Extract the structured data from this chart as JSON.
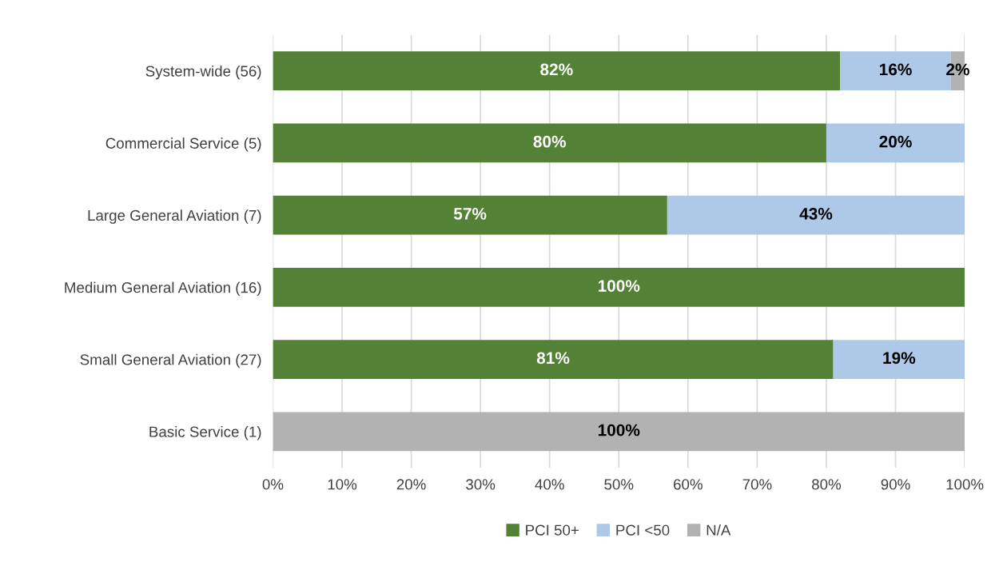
{
  "chart_data": {
    "type": "bar",
    "orientation": "horizontal",
    "stacked": true,
    "categories": [
      "System-wide (56)",
      "Commercial Service (5)",
      "Large General Aviation (7)",
      "Medium General Aviation (16)",
      "Small General Aviation (27)",
      "Basic Service (1)"
    ],
    "series": [
      {
        "name": "PCI 50+",
        "color": "#538135",
        "values": [
          82,
          80,
          57,
          100,
          81,
          0
        ],
        "value_labels": [
          "82%",
          "80%",
          "57%",
          "100%",
          "81%",
          null
        ]
      },
      {
        "name": "PCI <50",
        "color": "#adc9e7",
        "values": [
          16,
          20,
          43,
          0,
          19,
          0
        ],
        "value_labels": [
          "16%",
          "20%",
          "43%",
          null,
          "19%",
          null
        ]
      },
      {
        "name": "N/A",
        "color": "#b2b2b2",
        "values": [
          2,
          0,
          0,
          0,
          0,
          100
        ],
        "value_labels": [
          "2%",
          null,
          null,
          null,
          null,
          "100%"
        ]
      }
    ],
    "xlim": [
      0,
      100
    ],
    "xticks": [
      {
        "value": 0,
        "label": "0%"
      },
      {
        "value": 10,
        "label": "10%"
      },
      {
        "value": 20,
        "label": "20%"
      },
      {
        "value": 30,
        "label": "30%"
      },
      {
        "value": 40,
        "label": "40%"
      },
      {
        "value": 50,
        "label": "50%"
      },
      {
        "value": 60,
        "label": "60%"
      },
      {
        "value": 70,
        "label": "70%"
      },
      {
        "value": 80,
        "label": "80%"
      },
      {
        "value": 90,
        "label": "90%"
      },
      {
        "value": 100,
        "label": "100%"
      }
    ],
    "grid": "x",
    "legend": "bottom"
  }
}
